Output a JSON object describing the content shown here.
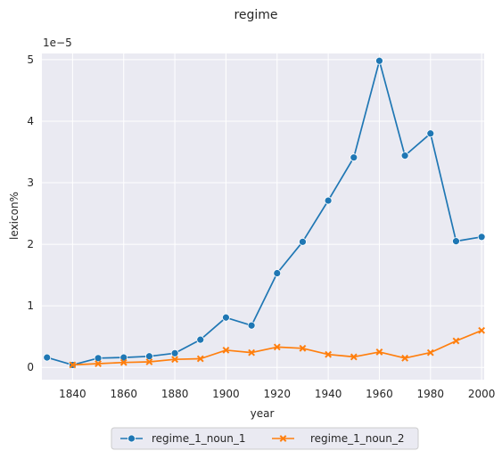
{
  "chart_data": {
    "type": "line",
    "title": "regime",
    "xlabel": "year",
    "ylabel": "lexicon%",
    "y_scale_note": "1e−5",
    "xlim": [
      1828,
      2001
    ],
    "ylim": [
      -0.2,
      5.1
    ],
    "x_ticks": [
      1840,
      1860,
      1880,
      1900,
      1920,
      1940,
      1960,
      1980,
      2000
    ],
    "y_ticks": [
      0,
      1,
      2,
      3,
      4,
      5
    ],
    "grid": true,
    "legend_position": "bottom-center",
    "series": [
      {
        "name": "regime_1_noun_1",
        "color": "#1f77b4",
        "marker": "circle",
        "x": [
          1830,
          1840,
          1850,
          1860,
          1870,
          1880,
          1890,
          1900,
          1910,
          1920,
          1930,
          1940,
          1950,
          1960,
          1970,
          1980,
          1990,
          2000
        ],
        "y": [
          0.16,
          0.04,
          0.15,
          0.16,
          0.18,
          0.23,
          0.45,
          0.81,
          0.68,
          1.53,
          2.04,
          2.71,
          3.41,
          4.98,
          3.44,
          3.8,
          2.05,
          2.12
        ]
      },
      {
        "name": "regime_1_noun_2",
        "color": "#ff7f0e",
        "marker": "x",
        "x": [
          1840,
          1850,
          1860,
          1870,
          1880,
          1890,
          1900,
          1910,
          1920,
          1930,
          1940,
          1950,
          1960,
          1970,
          1980,
          1990,
          2000
        ],
        "y": [
          0.04,
          0.06,
          0.08,
          0.09,
          0.13,
          0.14,
          0.28,
          0.24,
          0.33,
          0.31,
          0.21,
          0.17,
          0.25,
          0.15,
          0.24,
          0.43,
          0.6
        ]
      }
    ]
  }
}
